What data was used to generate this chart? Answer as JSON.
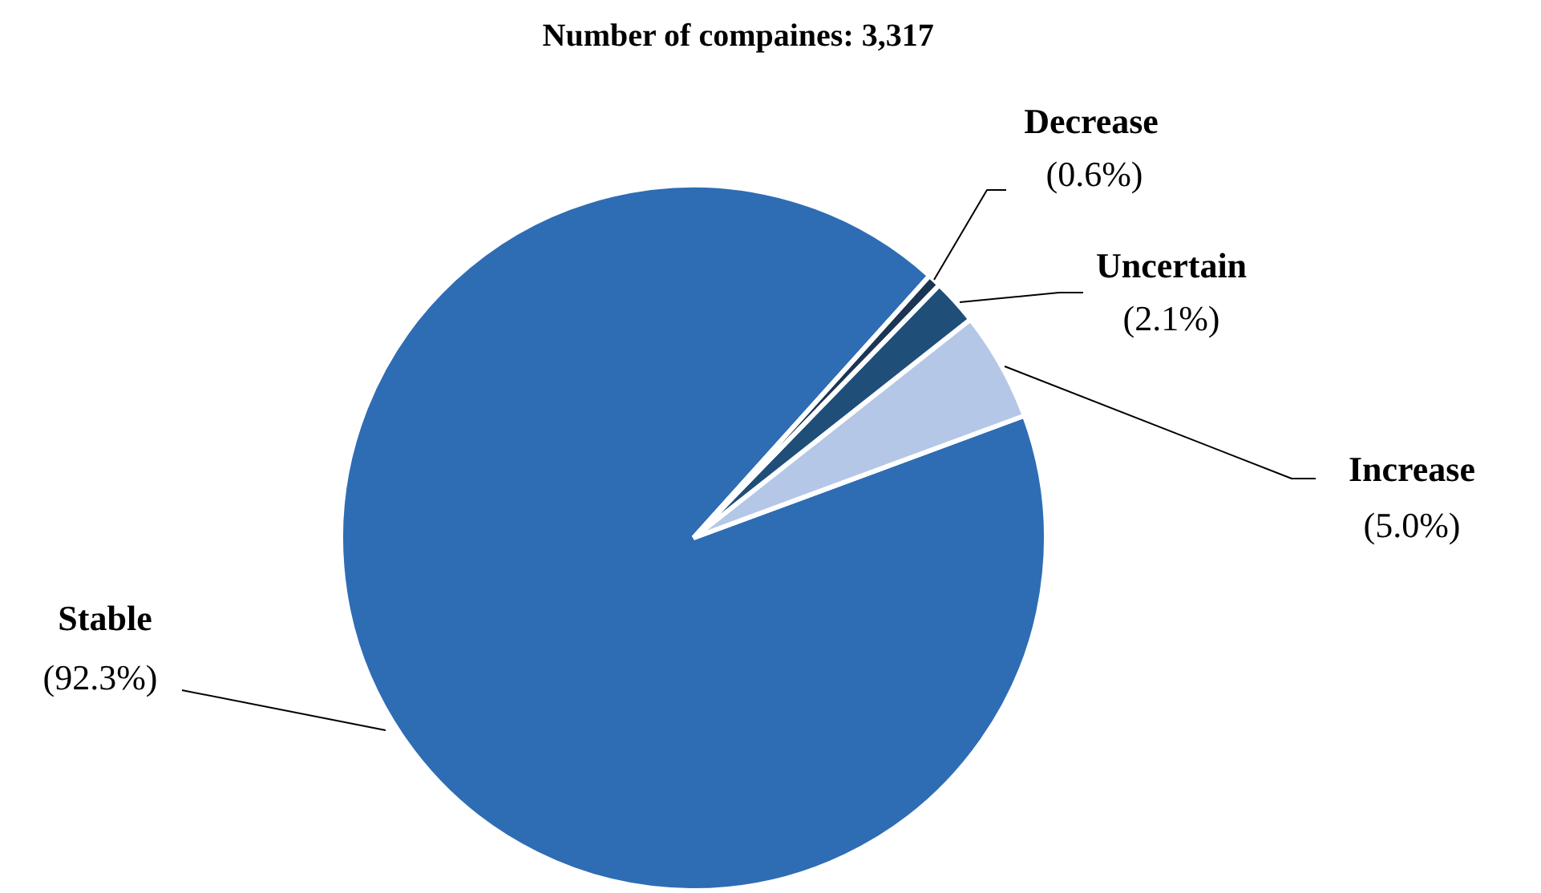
{
  "chart_data": {
    "type": "pie",
    "title": "Number of compaines: 3,317",
    "categories": [
      "Stable",
      "Increase",
      "Uncertain",
      "Decrease"
    ],
    "values": [
      92.3,
      5.0,
      2.1,
      0.6
    ],
    "value_labels": [
      "(92.3%)",
      "(5.0%)",
      "(2.1%)",
      "(0.6%)"
    ],
    "colors": [
      "#2e6db4",
      "#b4c7e7",
      "#1f4e79",
      "#1b3553"
    ]
  }
}
